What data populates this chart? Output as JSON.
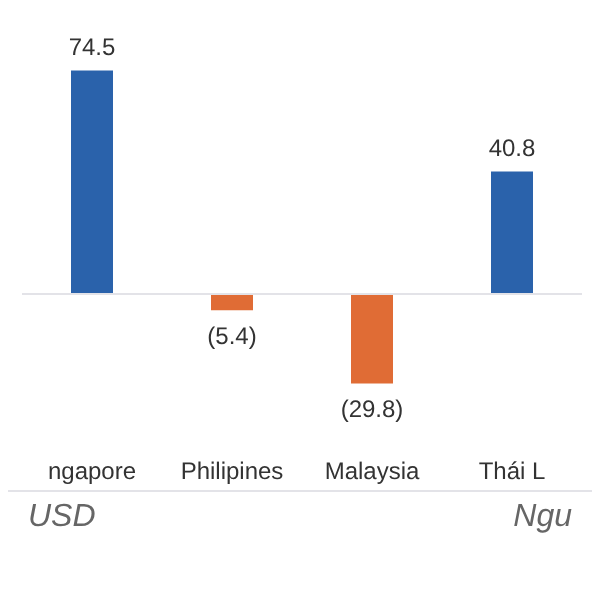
{
  "chart_data": {
    "type": "bar",
    "categories": [
      "ngapore",
      "Philipines",
      "Malaysia",
      "Thái L"
    ],
    "values": [
      74.5,
      -5.4,
      -29.8,
      40.8
    ],
    "colors": [
      "#2a62ab",
      "#e06c35",
      "#e06c35",
      "#2a62ab"
    ],
    "value_labels": [
      "74.5",
      "(5.4)",
      "(29.8)",
      "40.8"
    ],
    "annotations": [
      "USD",
      "Ngu"
    ]
  }
}
